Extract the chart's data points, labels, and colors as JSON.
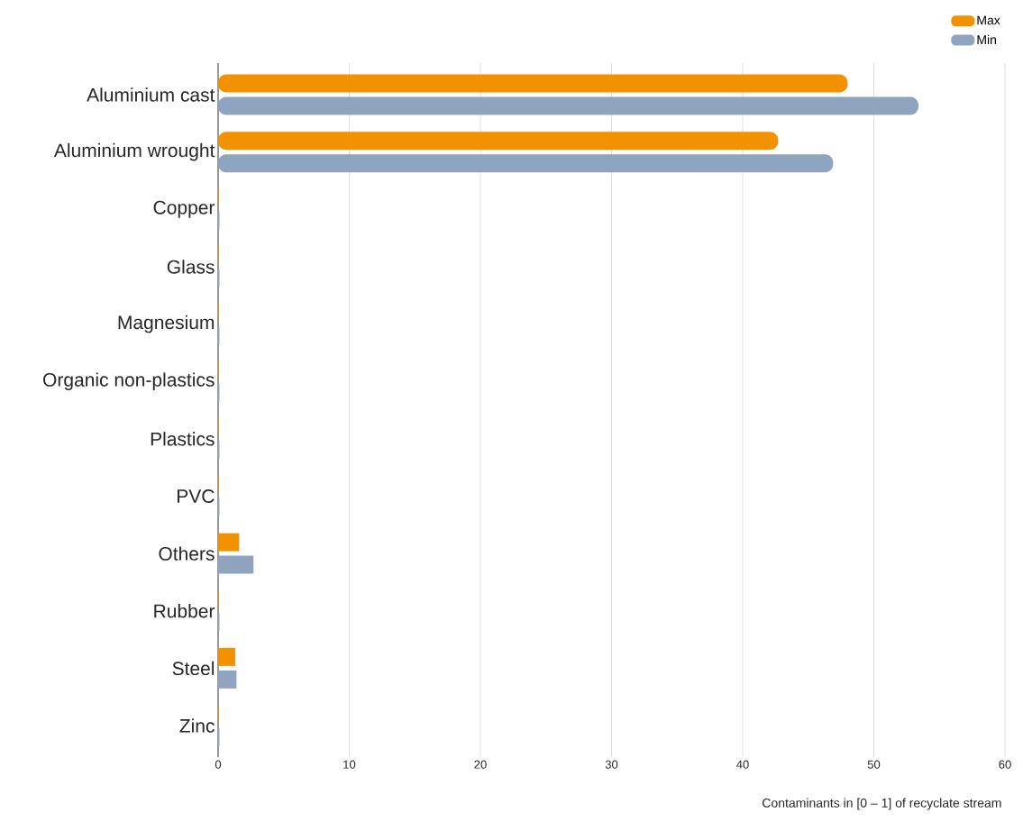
{
  "chart_data": {
    "type": "bar",
    "orientation": "horizontal",
    "categories": [
      "Aluminium cast",
      "Aluminium wrought",
      "Copper",
      "Glass",
      "Magnesium",
      "Organic non-plastics",
      "Plastics",
      "PVC",
      "Others",
      "Rubber",
      "Steel",
      "Zinc"
    ],
    "series": [
      {
        "name": "Max",
        "color": "#f39200",
        "values": [
          48.0,
          42.7,
          0.05,
          0.05,
          0.05,
          0.05,
          0.05,
          0.05,
          1.6,
          0.05,
          1.3,
          0.05
        ]
      },
      {
        "name": "Min",
        "color": "#8fa5bf",
        "values": [
          53.4,
          46.9,
          0.1,
          0.1,
          0.1,
          0.1,
          0.1,
          0.1,
          2.7,
          0.1,
          1.4,
          0.1
        ]
      }
    ],
    "xlabel": "Contaminants in [0 – 1] of recyclate stream",
    "xlim": [
      0,
      60
    ],
    "xticks": [
      0,
      10,
      20,
      30,
      40,
      50,
      60
    ],
    "grid": "x",
    "legend": "top right"
  }
}
